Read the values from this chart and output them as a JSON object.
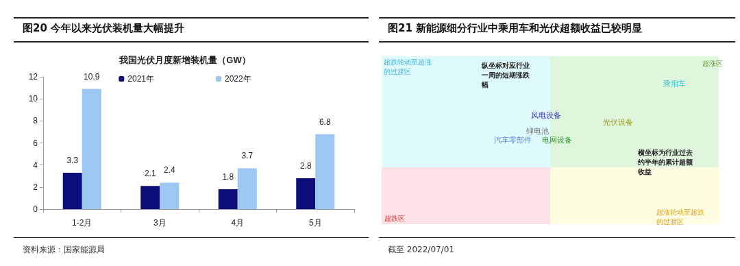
{
  "chart_data": [
    {
      "type": "bar",
      "title": "图20 今年以来光伏装机量大幅提升",
      "subtitle": "我国光伏月度新增装机量（GW）",
      "categories": [
        "1-2月",
        "3月",
        "4月",
        "5月"
      ],
      "series": [
        {
          "name": "2021年",
          "color": "#0c0c7a",
          "values": [
            3.3,
            2.1,
            1.8,
            2.8
          ]
        },
        {
          "name": "2022年",
          "color": "#9dc6f0",
          "values": [
            10.9,
            2.4,
            3.7,
            6.8
          ]
        }
      ],
      "ylim": [
        0,
        12
      ],
      "yticks": [
        0,
        2,
        4,
        6,
        8,
        10,
        12
      ],
      "grid": false,
      "legend": "top",
      "data_labels": true,
      "annotations": [
        "资料来源：国家能源局"
      ]
    },
    {
      "type": "other",
      "title": "图21 新能源细分行业中乘用车和光伏超额收益已较明显",
      "annotations": [
        "超跌轮动至超涨的过渡区",
        "超涨区",
        "超跌区",
        "超涨轮动至超跌的过渡区",
        "纵坐标对应行业一周的短期涨跌幅",
        "横坐标为行业过去约半年的累计超额收益",
        "乘用车",
        "风电设备",
        "锂电池",
        "汽车零部件",
        "电网设备",
        "光伏设备",
        "截至 2022/07/01"
      ]
    }
  ]
}
